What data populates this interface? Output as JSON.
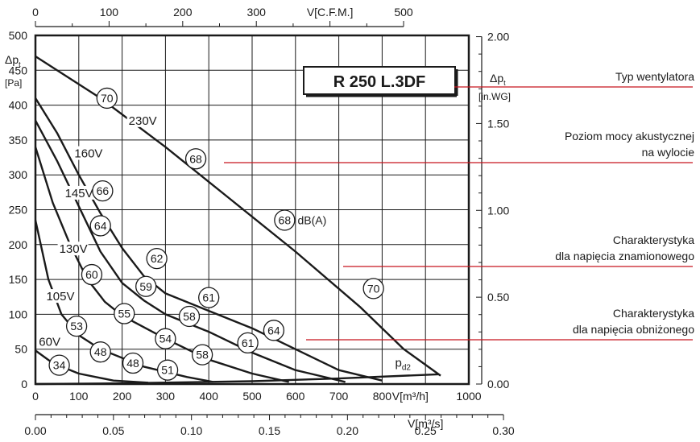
{
  "chart_data": {
    "type": "line",
    "title": "R 250 L.3DF",
    "xlabel": "V[m³/h]",
    "ylabel": "Δp_t [Pa]",
    "xlim": [
      0,
      1000
    ],
    "ylim": [
      0,
      500
    ],
    "grid": true,
    "x_ticks": [
      "0",
      "100",
      "200",
      "300",
      "400",
      "500",
      "600",
      "700",
      "800",
      "900",
      "1000"
    ],
    "y_ticks": [
      "0",
      "50",
      "100",
      "150",
      "200",
      "250",
      "300",
      "350",
      "400",
      "450",
      "500"
    ],
    "axis_labels": {
      "left_symbol": "Δp",
      "left_sub": "t",
      "left_unit": "[Pa]",
      "right_symbol": "Δp",
      "right_sub": "t",
      "right_unit": "[in.WG]",
      "bottom_m3h": "V[m³/h]",
      "top_cfm": "V[C.F.M.]",
      "bottom_m3s": "V[m³/s]"
    },
    "top_axis": {
      "label": "V[C.F.M.]",
      "ticks": [
        0,
        100,
        200,
        300,
        500
      ],
      "tick_labels": [
        "0",
        "100",
        "200",
        "300",
        "500"
      ],
      "m3h_per_cfm": 1.699
    },
    "bottom_m3s_axis": {
      "label": "V[m³/s]",
      "ticks": [
        0,
        0.05,
        0.1,
        0.15,
        0.2,
        0.25,
        0.3
      ],
      "tick_labels": [
        "0.00",
        "0.05",
        "0.10",
        "0.15",
        "0.20",
        "0.25",
        "0.30"
      ]
    },
    "right_axis": {
      "label": "Δp_t [in.WG]",
      "ticks": [
        0,
        0.5,
        1.0,
        1.5,
        2.0
      ],
      "tick_labels": [
        "0.00",
        "0.50",
        "1.00",
        "1.50",
        "2.00"
      ],
      "pa_per_inwg": 249.1
    },
    "series": [
      {
        "name": "230V",
        "points": [
          [
            0,
            470
          ],
          [
            150,
            410
          ],
          [
            300,
            340
          ],
          [
            450,
            265
          ],
          [
            600,
            190
          ],
          [
            750,
            110
          ],
          [
            850,
            50
          ],
          [
            935,
            12
          ]
        ]
      },
      {
        "name": "160V",
        "points": [
          [
            0,
            410
          ],
          [
            50,
            360
          ],
          [
            100,
            300
          ],
          [
            150,
            245
          ],
          [
            200,
            195
          ],
          [
            250,
            155
          ],
          [
            300,
            130
          ],
          [
            400,
            105
          ],
          [
            500,
            80
          ],
          [
            600,
            50
          ],
          [
            700,
            20
          ],
          [
            800,
            5
          ]
        ]
      },
      {
        "name": "145V",
        "points": [
          [
            0,
            378
          ],
          [
            50,
            320
          ],
          [
            100,
            255
          ],
          [
            150,
            190
          ],
          [
            200,
            145
          ],
          [
            250,
            120
          ],
          [
            300,
            100
          ],
          [
            400,
            75
          ],
          [
            500,
            45
          ],
          [
            600,
            20
          ],
          [
            715,
            3
          ]
        ]
      },
      {
        "name": "130V",
        "points": [
          [
            0,
            340
          ],
          [
            40,
            260
          ],
          [
            80,
            200
          ],
          [
            120,
            150
          ],
          [
            160,
            118
          ],
          [
            200,
            98
          ],
          [
            300,
            65
          ],
          [
            400,
            35
          ],
          [
            500,
            15
          ],
          [
            585,
            3
          ]
        ]
      },
      {
        "name": "105V",
        "points": [
          [
            0,
            235
          ],
          [
            30,
            150
          ],
          [
            60,
            100
          ],
          [
            100,
            70
          ],
          [
            150,
            50
          ],
          [
            250,
            25
          ],
          [
            350,
            10
          ],
          [
            410,
            3
          ]
        ]
      },
      {
        "name": "60V",
        "points": [
          [
            0,
            48
          ],
          [
            40,
            30
          ],
          [
            100,
            15
          ],
          [
            180,
            5
          ],
          [
            260,
            2
          ]
        ]
      },
      {
        "name": "p_d2",
        "points": [
          [
            0,
            0
          ],
          [
            200,
            1
          ],
          [
            500,
            4
          ],
          [
            700,
            8
          ],
          [
            930,
            14
          ]
        ]
      }
    ],
    "series_labels": [
      {
        "text": "230V",
        "at": [
          215,
          372
        ]
      },
      {
        "text": "160V",
        "at": [
          90,
          325
        ]
      },
      {
        "text": "145V",
        "at": [
          68,
          268
        ]
      },
      {
        "text": "130V",
        "at": [
          55,
          188
        ]
      },
      {
        "text": "105V",
        "at": [
          25,
          120
        ]
      },
      {
        "text": "60V",
        "at": [
          8,
          55
        ]
      }
    ],
    "pd2_label": {
      "main": "p",
      "sub": "d2",
      "at": [
        830,
        25
      ]
    },
    "db_labels": [
      {
        "value": "70",
        "at": [
          165,
          410
        ]
      },
      {
        "value": "68",
        "at": [
          370,
          323
        ]
      },
      {
        "value": "66",
        "at": [
          155,
          277
        ]
      },
      {
        "value": "64",
        "at": [
          150,
          227
        ]
      },
      {
        "value": "62",
        "at": [
          280,
          180
        ]
      },
      {
        "value": "60",
        "at": [
          130,
          157
        ]
      },
      {
        "value": "59",
        "at": [
          255,
          140
        ]
      },
      {
        "value": "61",
        "at": [
          400,
          124
        ]
      },
      {
        "value": "55",
        "at": [
          205,
          101
        ]
      },
      {
        "value": "58",
        "at": [
          355,
          97
        ]
      },
      {
        "value": "53",
        "at": [
          95,
          83
        ]
      },
      {
        "value": "54",
        "at": [
          300,
          65
        ]
      },
      {
        "value": "64",
        "at": [
          550,
          77
        ]
      },
      {
        "value": "61",
        "at": [
          490,
          59
        ]
      },
      {
        "value": "48",
        "at": [
          150,
          46
        ]
      },
      {
        "value": "58",
        "at": [
          385,
          42
        ]
      },
      {
        "value": "48",
        "at": [
          225,
          30
        ]
      },
      {
        "value": "34",
        "at": [
          55,
          27
        ]
      },
      {
        "value": "51",
        "at": [
          305,
          20
        ]
      },
      {
        "value": "68",
        "at": [
          575,
          235
        ]
      },
      {
        "value": "70",
        "at": [
          780,
          137
        ]
      }
    ],
    "db_unit_label": {
      "text": "dB(A)",
      "at": [
        605,
        235
      ]
    },
    "annotations": [
      {
        "text_lines": [
          "Typ wentylatora"
        ],
        "line_from": [
          860,
          108
        ]
      },
      {
        "text_lines": [
          "Poziom mocy akustycznej",
          "na wylocie"
        ],
        "line_from": [
          860,
          202
        ]
      },
      {
        "text_lines": [
          "Charakterystyka",
          "dla napięcia znamionowego"
        ],
        "line_from": [
          860,
          331
        ]
      },
      {
        "text_lines": [
          "Charakterystyka",
          "dla napięcia obniżonego"
        ],
        "line_from": [
          860,
          422
        ]
      }
    ],
    "colors": {
      "curve": "#1a1a1a",
      "grid": "#1a1a1a",
      "annotation_line": "#c8141e",
      "background": "#ffffff"
    }
  }
}
